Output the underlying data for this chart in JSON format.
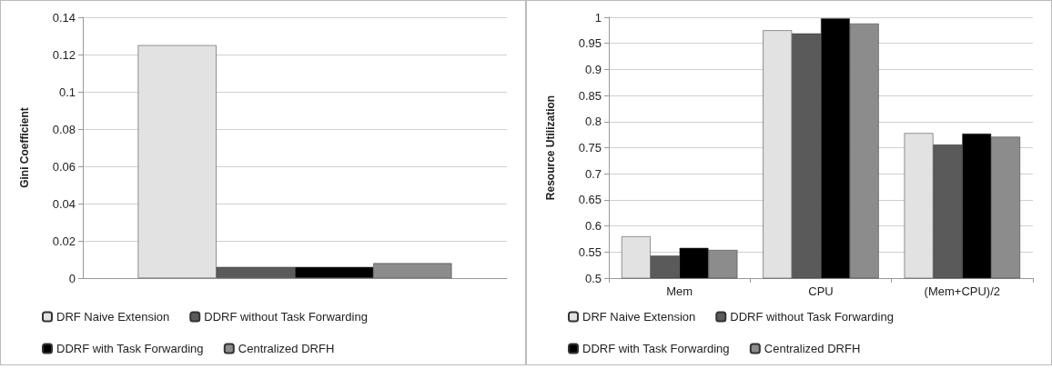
{
  "chart_data": [
    {
      "type": "bar",
      "ylabel": "Gini Coefficient",
      "categories": [
        null
      ],
      "series": [
        {
          "name": "DRF Naive Extension",
          "color": "#e2e2e2",
          "values": [
            0.125
          ]
        },
        {
          "name": "DDRF without Task Forwarding",
          "color": "#5a5a5a",
          "values": [
            0.006
          ]
        },
        {
          "name": "DDRF with Task Forwarding",
          "color": "#000000",
          "values": [
            0.006
          ]
        },
        {
          "name": "Centralized DRFH",
          "color": "#8c8c8c",
          "values": [
            0.008
          ]
        }
      ],
      "ylim": [
        0,
        0.14
      ],
      "yticks": [
        0,
        0.02,
        0.04,
        0.06,
        0.08,
        0.1,
        0.12,
        0.14
      ],
      "grid": "y",
      "legend": "bottom"
    },
    {
      "type": "bar",
      "ylabel": "Resource Utilization",
      "categories": [
        "Mem",
        "CPU",
        "(Mem+CPU)/2"
      ],
      "series": [
        {
          "name": "DRF Naive Extension",
          "color": "#e2e2e2",
          "values": [
            0.58,
            0.975,
            0.778
          ]
        },
        {
          "name": "DDRF without Task Forwarding",
          "color": "#5a5a5a",
          "values": [
            0.543,
            0.969,
            0.756
          ]
        },
        {
          "name": "DDRF with Task Forwarding",
          "color": "#000000",
          "values": [
            0.558,
            0.998,
            0.777
          ]
        },
        {
          "name": "Centralized DRFH",
          "color": "#8c8c8c",
          "values": [
            0.554,
            0.988,
            0.771
          ]
        }
      ],
      "ylim": [
        0.5,
        1
      ],
      "yticks": [
        0.5,
        0.55,
        0.6,
        0.65,
        0.7,
        0.75,
        0.8,
        0.85,
        0.9,
        0.95,
        1
      ],
      "grid": "y",
      "legend": "bottom"
    }
  ]
}
